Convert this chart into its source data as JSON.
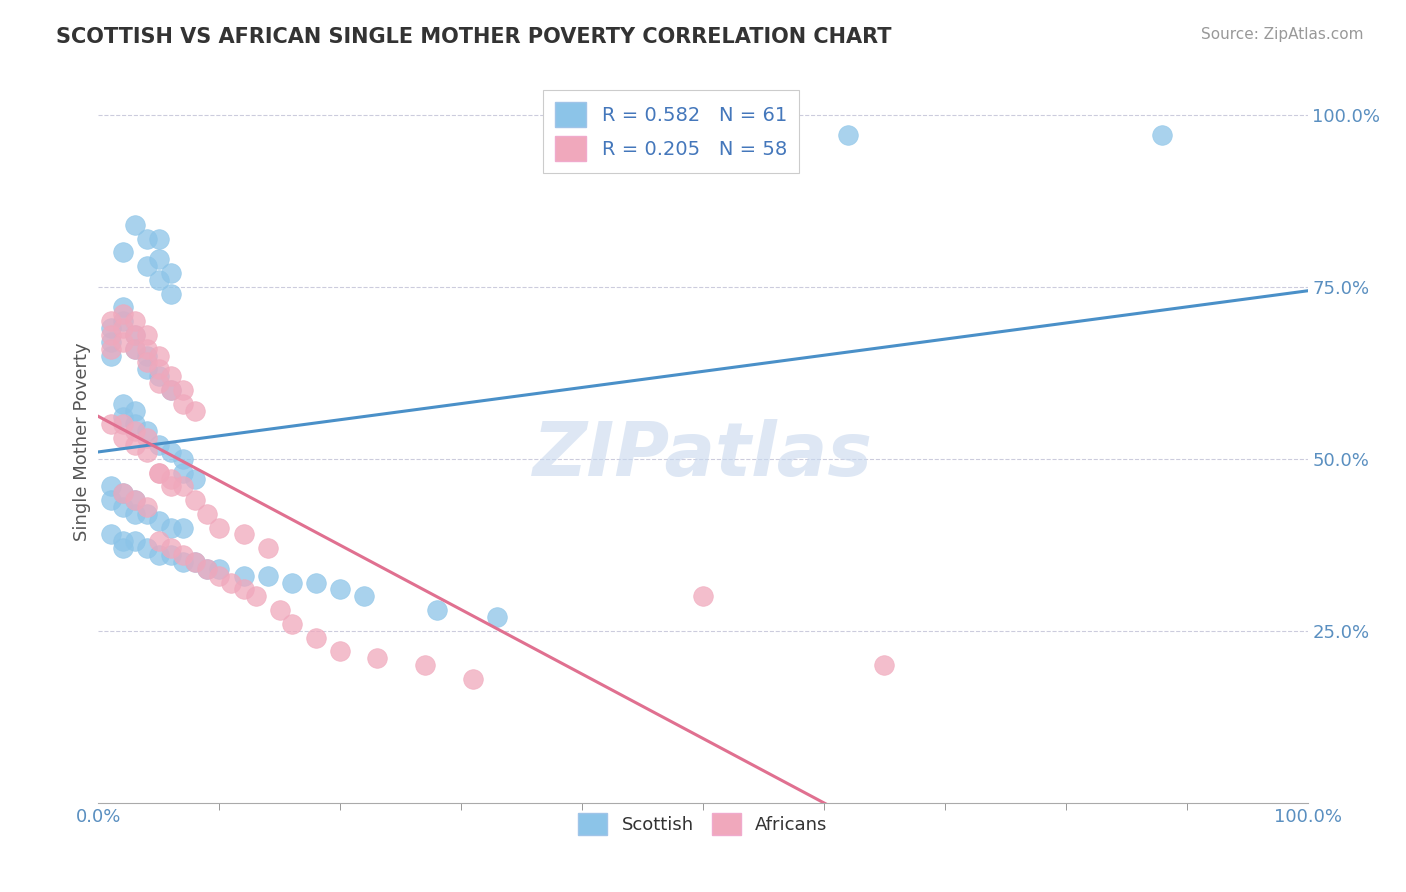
{
  "title": "SCOTTISH VS AFRICAN SINGLE MOTHER POVERTY CORRELATION CHART",
  "source": "Source: ZipAtlas.com",
  "ylabel": "Single Mother Poverty",
  "scottish_color": "#8CC4E8",
  "african_color": "#F0A8BC",
  "trendline_scottish_color": "#4A90C8",
  "trendline_african_color": "#E07090",
  "watermark": "ZIPatlas",
  "watermark_color": "#C8D8EE",
  "legend_R_s": "R = 0.582",
  "legend_N_s": "N = 61",
  "legend_R_a": "R = 0.205",
  "legend_N_a": "N = 58",
  "legend_label_s": "Scottish",
  "legend_label_a": "Africans",
  "scottish_points_x": [
    0.02,
    0.03,
    0.04,
    0.04,
    0.05,
    0.05,
    0.05,
    0.06,
    0.06,
    0.01,
    0.01,
    0.01,
    0.02,
    0.02,
    0.03,
    0.03,
    0.04,
    0.04,
    0.05,
    0.06,
    0.02,
    0.02,
    0.03,
    0.03,
    0.04,
    0.05,
    0.06,
    0.07,
    0.07,
    0.08,
    0.01,
    0.01,
    0.02,
    0.02,
    0.03,
    0.03,
    0.04,
    0.05,
    0.06,
    0.07,
    0.01,
    0.02,
    0.02,
    0.03,
    0.04,
    0.05,
    0.06,
    0.07,
    0.08,
    0.09,
    0.1,
    0.12,
    0.14,
    0.16,
    0.18,
    0.2,
    0.22,
    0.28,
    0.33,
    0.62,
    0.88
  ],
  "scottish_points_y": [
    0.8,
    0.84,
    0.82,
    0.78,
    0.82,
    0.79,
    0.76,
    0.77,
    0.74,
    0.69,
    0.67,
    0.65,
    0.72,
    0.7,
    0.68,
    0.66,
    0.65,
    0.63,
    0.62,
    0.6,
    0.58,
    0.56,
    0.57,
    0.55,
    0.54,
    0.52,
    0.51,
    0.5,
    0.48,
    0.47,
    0.46,
    0.44,
    0.45,
    0.43,
    0.44,
    0.42,
    0.42,
    0.41,
    0.4,
    0.4,
    0.39,
    0.38,
    0.37,
    0.38,
    0.37,
    0.36,
    0.36,
    0.35,
    0.35,
    0.34,
    0.34,
    0.33,
    0.33,
    0.32,
    0.32,
    0.31,
    0.3,
    0.28,
    0.27,
    0.97,
    0.97
  ],
  "african_points_x": [
    0.01,
    0.01,
    0.01,
    0.02,
    0.02,
    0.02,
    0.03,
    0.03,
    0.03,
    0.04,
    0.04,
    0.04,
    0.05,
    0.05,
    0.05,
    0.06,
    0.06,
    0.07,
    0.07,
    0.08,
    0.01,
    0.02,
    0.02,
    0.03,
    0.03,
    0.04,
    0.04,
    0.05,
    0.06,
    0.07,
    0.02,
    0.03,
    0.04,
    0.05,
    0.06,
    0.08,
    0.09,
    0.1,
    0.12,
    0.14,
    0.05,
    0.06,
    0.07,
    0.08,
    0.09,
    0.1,
    0.11,
    0.12,
    0.13,
    0.15,
    0.16,
    0.18,
    0.2,
    0.23,
    0.27,
    0.31,
    0.5,
    0.65
  ],
  "african_points_y": [
    0.7,
    0.68,
    0.66,
    0.71,
    0.69,
    0.67,
    0.7,
    0.68,
    0.66,
    0.68,
    0.66,
    0.64,
    0.65,
    0.63,
    0.61,
    0.62,
    0.6,
    0.6,
    0.58,
    0.57,
    0.55,
    0.55,
    0.53,
    0.54,
    0.52,
    0.53,
    0.51,
    0.48,
    0.47,
    0.46,
    0.45,
    0.44,
    0.43,
    0.48,
    0.46,
    0.44,
    0.42,
    0.4,
    0.39,
    0.37,
    0.38,
    0.37,
    0.36,
    0.35,
    0.34,
    0.33,
    0.32,
    0.31,
    0.3,
    0.28,
    0.26,
    0.24,
    0.22,
    0.21,
    0.2,
    0.18,
    0.3,
    0.2
  ],
  "xtick_positions": [
    0.0,
    0.1,
    0.2,
    0.3,
    0.4,
    0.5,
    0.6,
    0.7,
    0.8,
    0.9,
    1.0
  ],
  "ytick_positions": [
    0.25,
    0.5,
    0.75,
    1.0
  ],
  "xlim": [
    0.0,
    1.0
  ],
  "ylim": [
    0.0,
    1.05
  ]
}
